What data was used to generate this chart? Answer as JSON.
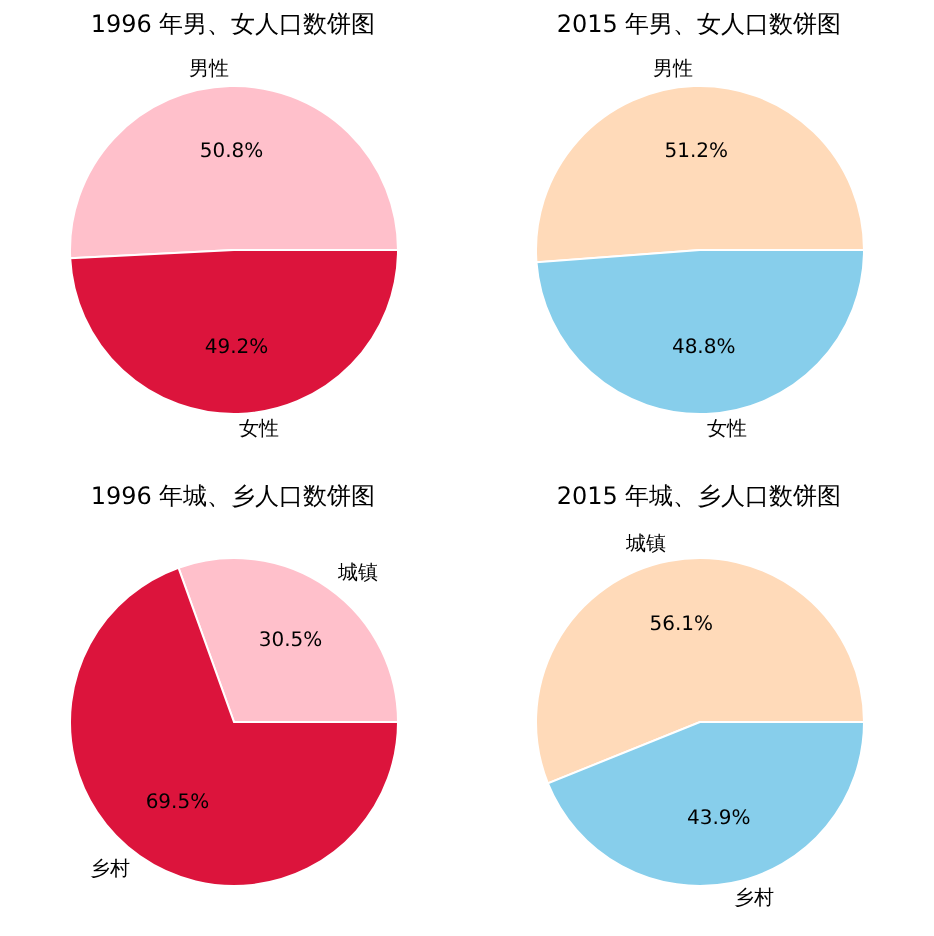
{
  "chart_data": [
    {
      "type": "pie",
      "title": "1996 年男、女人口数饼图",
      "categories": [
        "男性",
        "女性"
      ],
      "values": [
        50.8,
        49.2
      ],
      "colors": [
        "#ffc0cb",
        "#dc143c"
      ],
      "value_labels": [
        "50.8%",
        "49.2%"
      ]
    },
    {
      "type": "pie",
      "title": "2015 年男、女人口数饼图",
      "categories": [
        "男性",
        "女性"
      ],
      "values": [
        51.2,
        48.8
      ],
      "colors": [
        "#ffdab9",
        "#87ceeb"
      ],
      "value_labels": [
        "51.2%",
        "48.8%"
      ]
    },
    {
      "type": "pie",
      "title": "1996 年城、乡人口数饼图",
      "categories": [
        "城镇",
        "乡村"
      ],
      "values": [
        30.5,
        69.5
      ],
      "colors": [
        "#ffc0cb",
        "#dc143c"
      ],
      "value_labels": [
        "30.5%",
        "69.5%"
      ]
    },
    {
      "type": "pie",
      "title": "2015 年城、乡人口数饼图",
      "categories": [
        "城镇",
        "乡村"
      ],
      "values": [
        56.1,
        43.9
      ],
      "colors": [
        "#ffdab9",
        "#87ceeb"
      ],
      "value_labels": [
        "56.1%",
        "43.9%"
      ]
    }
  ]
}
